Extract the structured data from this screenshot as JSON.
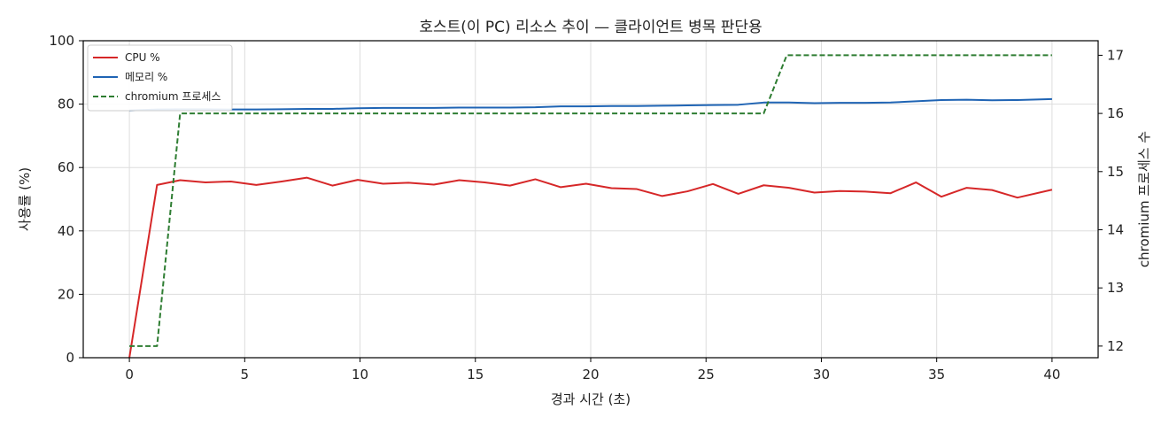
{
  "chart_data": {
    "type": "line",
    "title": "호스트(이 PC) 리소스 추이 — 클라이언트 병목 판단용",
    "xlabel": "경과 시간 (초)",
    "ylabel": "사용률 (%)",
    "y2label": "chromium 프로세스 수",
    "xlim": [
      -2,
      42
    ],
    "ylim": [
      0,
      100
    ],
    "y2lim": [
      11.8,
      17.25
    ],
    "xticks": [
      0,
      5,
      10,
      15,
      20,
      25,
      30,
      35,
      40
    ],
    "yticks": [
      0,
      20,
      40,
      60,
      80,
      100
    ],
    "y2ticks": [
      12,
      13,
      14,
      15,
      16,
      17
    ],
    "grid": true,
    "legend_position": "top-left",
    "x": [
      0,
      1.2,
      2.2,
      3.3,
      4.4,
      5.5,
      6.6,
      7.7,
      8.8,
      9.9,
      11.0,
      12.1,
      13.2,
      14.3,
      15.4,
      16.5,
      17.6,
      18.7,
      19.8,
      20.9,
      22.0,
      23.1,
      24.2,
      25.3,
      26.4,
      27.5,
      28.6,
      29.7,
      30.8,
      31.9,
      33.0,
      34.1,
      35.2,
      36.3,
      37.4,
      38.5,
      40.0
    ],
    "series": [
      {
        "name": "CPU %",
        "axis": "left",
        "color": "#d62728",
        "style": "solid",
        "values": [
          0,
          54.5,
          56.0,
          55.3,
          55.6,
          54.5,
          55.6,
          56.8,
          54.3,
          56.1,
          54.9,
          55.2,
          54.6,
          56.0,
          55.3,
          54.3,
          56.3,
          53.8,
          54.9,
          53.5,
          53.2,
          51.0,
          52.5,
          54.8,
          51.7,
          54.4,
          53.6,
          52.1,
          52.6,
          52.4,
          51.9,
          55.3,
          50.8,
          53.6,
          52.9,
          50.5,
          53.0
        ]
      },
      {
        "name": "메모리 %",
        "axis": "left",
        "color": "#1f64b4",
        "style": "solid",
        "values": [
          78.0,
          78.3,
          78.4,
          78.4,
          78.3,
          78.3,
          78.4,
          78.5,
          78.5,
          78.7,
          78.8,
          78.8,
          78.8,
          78.9,
          78.9,
          78.9,
          79.0,
          79.3,
          79.3,
          79.4,
          79.4,
          79.5,
          79.6,
          79.7,
          79.8,
          80.5,
          80.5,
          80.3,
          80.4,
          80.4,
          80.5,
          80.9,
          81.3,
          81.4,
          81.2,
          81.3,
          81.6
        ]
      },
      {
        "name": "chromium 프로세스",
        "axis": "right",
        "color": "#2e7d32",
        "style": "dashed",
        "values": [
          12,
          12,
          16,
          16,
          16,
          16,
          16,
          16,
          16,
          16,
          16,
          16,
          16,
          16,
          16,
          16,
          16,
          16,
          16,
          16,
          16,
          16,
          16,
          16,
          16,
          16,
          17,
          17,
          17,
          17,
          17,
          17,
          17,
          17,
          17,
          17,
          17
        ]
      }
    ]
  }
}
